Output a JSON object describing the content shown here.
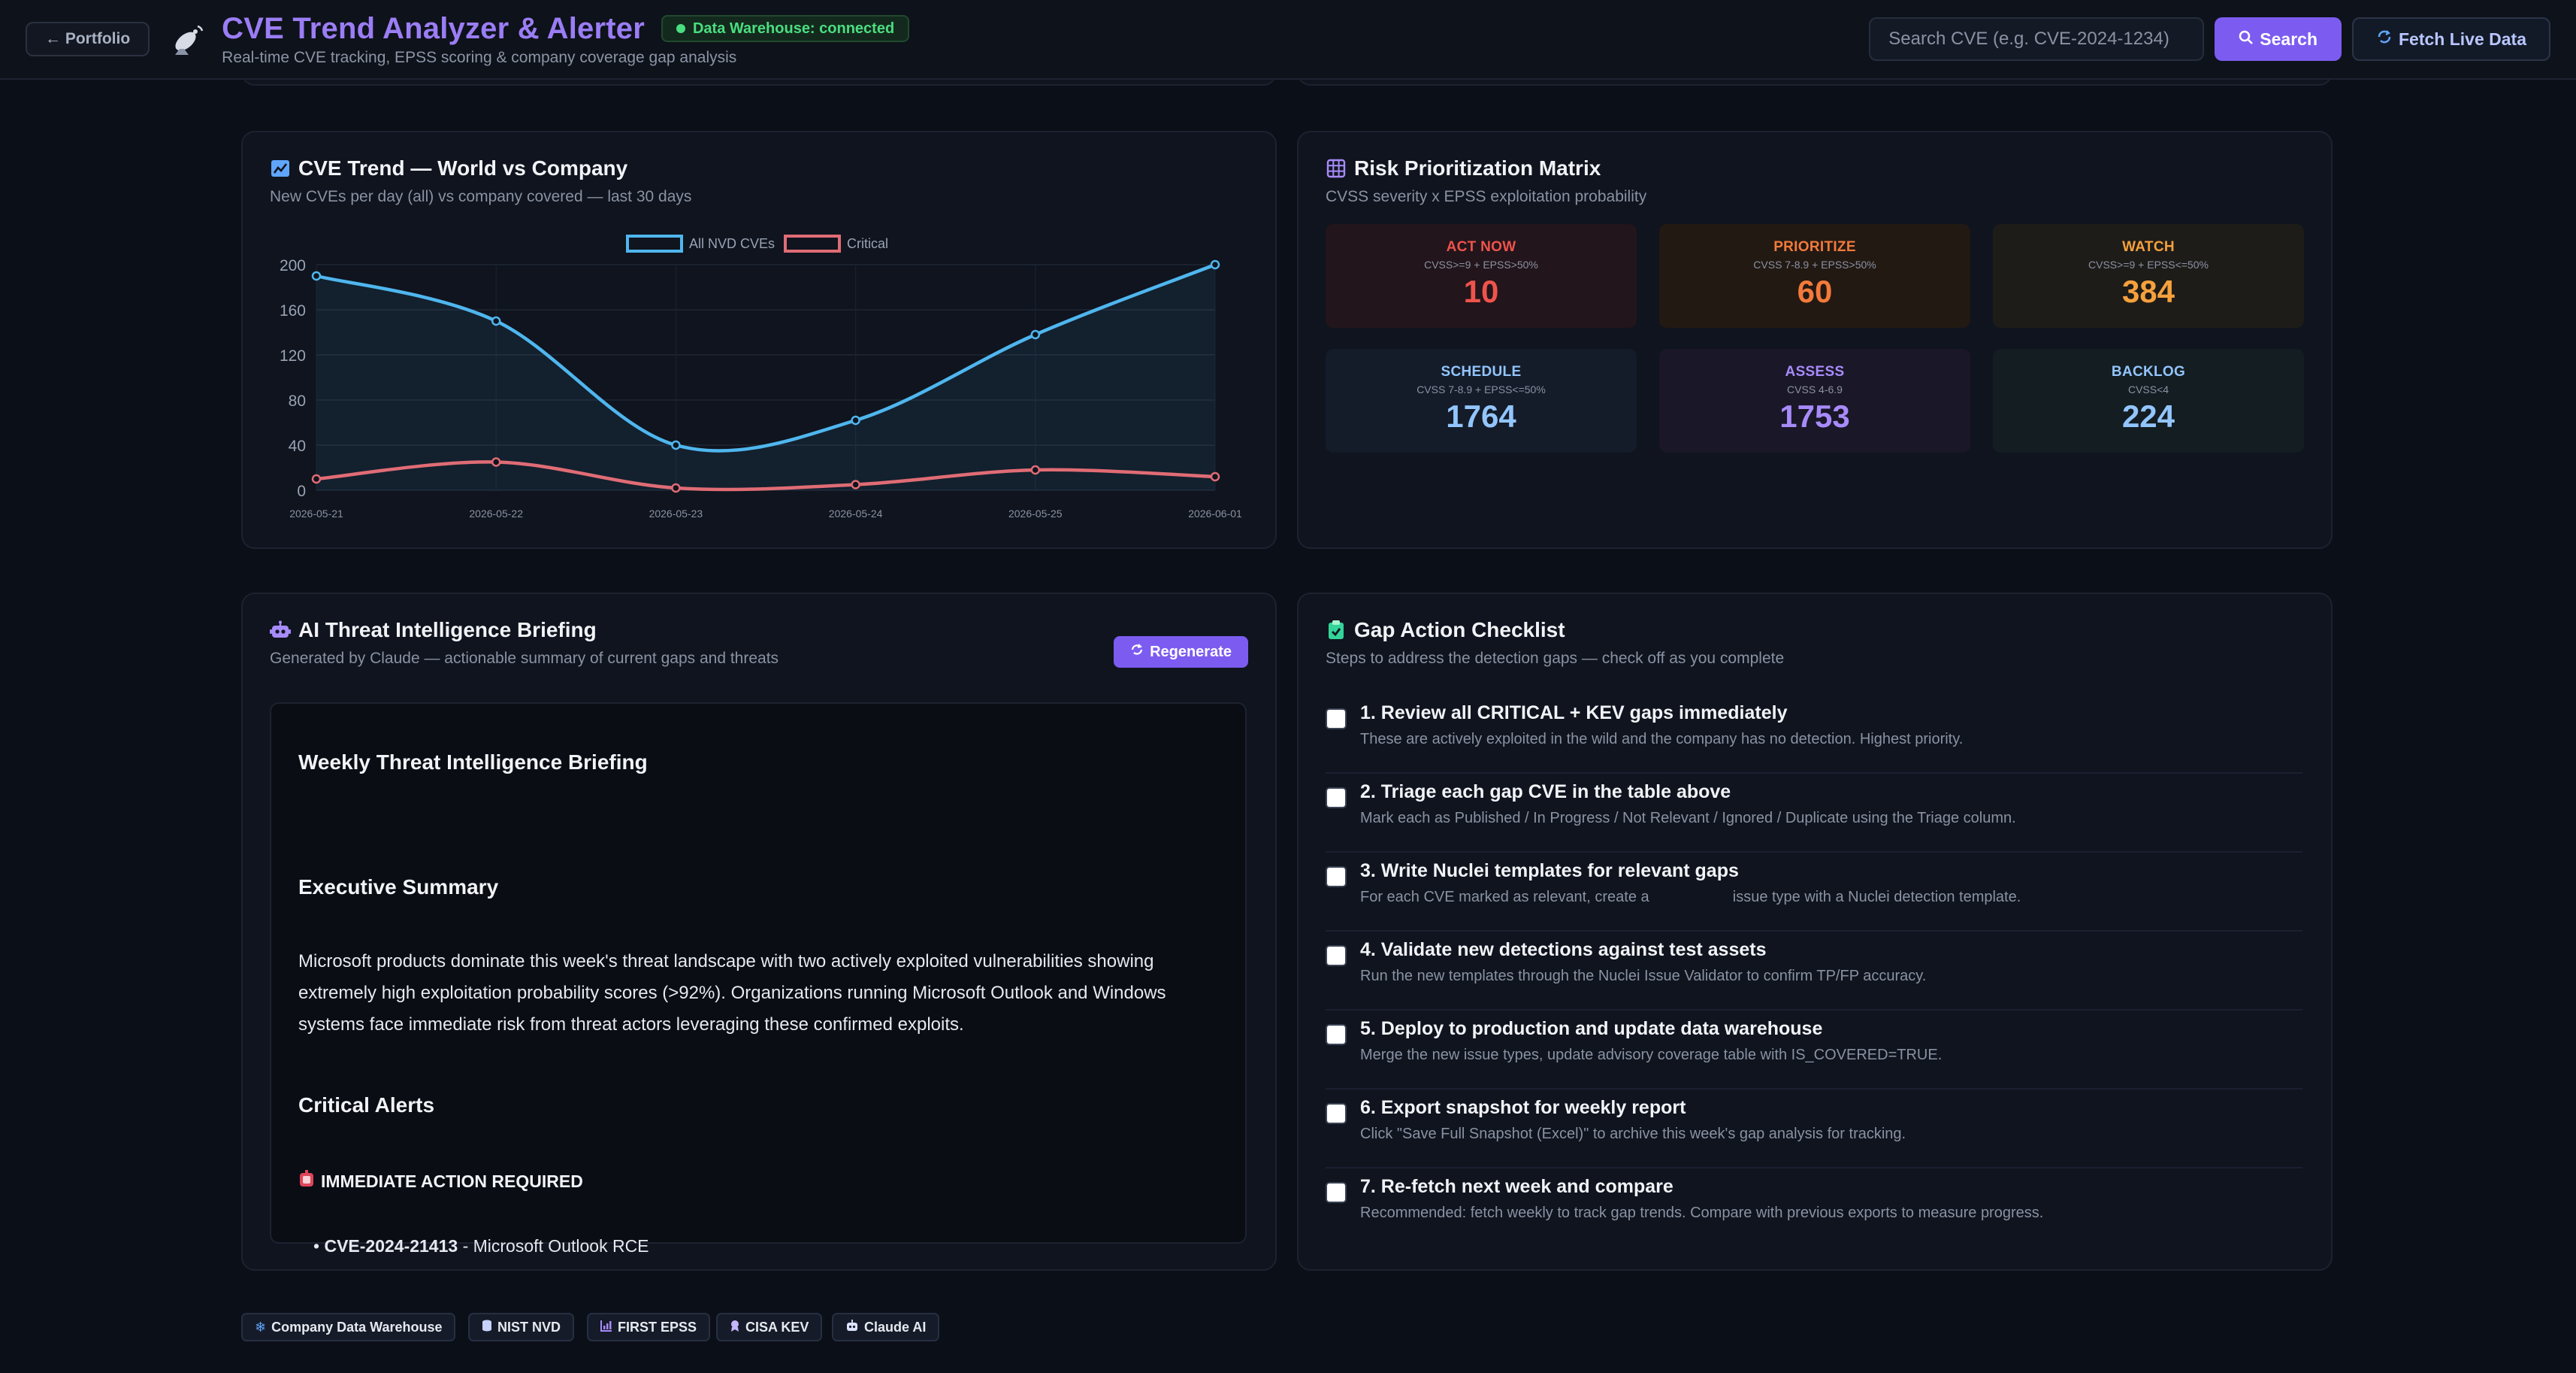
{
  "header": {
    "back_label": "← Portfolio",
    "title": "CVE Trend Analyzer & Alerter",
    "subtitle": "Real-time CVE tracking, EPSS scoring & company coverage gap analysis",
    "status": "Data Warehouse: connected",
    "search_placeholder": "Search CVE (e.g. CVE-2024-1234)",
    "search_label": "Search",
    "fetch_label": "Fetch Live Data",
    "logo_icon": "satellite-dish-icon"
  },
  "trend": {
    "title": "CVE Trend — World vs Company",
    "subtitle": "New CVEs per day (all) vs company covered — last 30 days"
  },
  "chart_data": {
    "type": "line",
    "categories": [
      "2026-05-21",
      "2026-05-22",
      "2026-05-23",
      "2026-05-24",
      "2026-05-25",
      "2026-06-01"
    ],
    "series": [
      {
        "name": "All NVD CVEs",
        "values": [
          190,
          150,
          40,
          62,
          138,
          200
        ],
        "color": "#4fb6ee"
      },
      {
        "name": "Critical",
        "values": [
          10,
          25,
          2,
          5,
          18,
          12
        ],
        "color": "#e06c75"
      }
    ],
    "yticks": [
      0,
      40,
      80,
      120,
      160,
      200
    ],
    "ylim": [
      0,
      200
    ],
    "grid": true,
    "legend_position": "top-center",
    "title": "",
    "xlabel": "",
    "ylabel": ""
  },
  "matrix": {
    "title": "Risk Prioritization Matrix",
    "subtitle": "CVSS severity x EPSS exploitation probability",
    "cells": [
      {
        "label": "ACT NOW",
        "cond": "CVSS>=9 + EPSS>50%",
        "count": "10",
        "color": "#f0534c",
        "bg": "#22151b"
      },
      {
        "label": "PRIORITIZE",
        "cond": "CVSS 7-8.9 + EPSS>50%",
        "count": "60",
        "color": "#f37a3b",
        "bg": "#221913"
      },
      {
        "label": "WATCH",
        "cond": "CVSS>=9 + EPSS<=50%",
        "count": "384",
        "color": "#f5a13c",
        "bg": "#1e1c19"
      },
      {
        "label": "SCHEDULE",
        "cond": "CVSS 7-8.9 + EPSS<=50%",
        "count": "1764",
        "color": "#93c5fd",
        "bg": "#141c2a"
      },
      {
        "label": "ASSESS",
        "cond": "CVSS 4-6.9",
        "count": "1753",
        "color": "#a78bfa",
        "bg": "#1a1728"
      },
      {
        "label": "BACKLOG",
        "cond": "CVSS<4",
        "count": "224",
        "color": "#93c5fd",
        "bg": "#131d22"
      }
    ]
  },
  "briefing": {
    "title": "AI Threat Intelligence Briefing",
    "subtitle": "Generated by Claude — actionable summary of current gaps and threats",
    "regen_label": "Regenerate",
    "heading": "Weekly Threat Intelligence Briefing",
    "exec_heading": "Executive Summary",
    "exec_text": "Microsoft products dominate this week's threat landscape with two actively exploited vulnerabilities showing extremely high exploitation probability scores (>92%). Organizations running Microsoft Outlook and Windows systems face immediate risk from threat actors leveraging these confirmed exploits.",
    "alerts_heading": "Critical Alerts",
    "alert_label": "IMMEDIATE ACTION REQUIRED",
    "cut_cve": "CVE-2024-21413",
    "cut_text": " - Microsoft Outlook RCE"
  },
  "checklist": {
    "title": "Gap Action Checklist",
    "subtitle": "Steps to address the detection gaps — check off as you complete",
    "items": [
      {
        "title": "1. Review all CRITICAL + KEV gaps immediately",
        "desc": "These are actively exploited in the wild and the company has no detection. Highest priority."
      },
      {
        "title": "2. Triage each gap CVE in the table above",
        "desc": "Mark each as Published / In Progress / Not Relevant / Ignored / Duplicate using the Triage column."
      },
      {
        "title": "3. Write Nuclei templates for relevant gaps",
        "desc": "For each CVE marked as relevant, create a",
        "desc2": "issue type with a Nuclei detection template."
      },
      {
        "title": "4. Validate new detections against test assets",
        "desc": "Run the new templates through the Nuclei Issue Validator to confirm TP/FP accuracy."
      },
      {
        "title": "5. Deploy to production and update data warehouse",
        "desc": "Merge the new issue types, update advisory coverage table with IS_COVERED=TRUE."
      },
      {
        "title": "6. Export snapshot for weekly report",
        "desc": "Click \"Save Full Snapshot (Excel)\" to archive this week's gap analysis for tracking."
      },
      {
        "title": "7. Re-fetch next week and compare",
        "desc": "Recommended: fetch weekly to track gap trends. Compare with previous exports to measure progress."
      }
    ]
  },
  "footer": {
    "chips": [
      {
        "label": "Company Data Warehouse",
        "icon": "snowflake-icon",
        "color": "#93c5fd"
      },
      {
        "label": "NIST NVD",
        "icon": "database-icon",
        "color": "#c7d2fe"
      },
      {
        "label": "FIRST EPSS",
        "icon": "chart-icon",
        "color": "#a78bfa"
      },
      {
        "label": "CISA KEV",
        "icon": "badge-icon",
        "color": "#c4b5fd"
      },
      {
        "label": "Claude AI",
        "icon": "robot-icon",
        "color": "#dbe3ff"
      }
    ]
  }
}
